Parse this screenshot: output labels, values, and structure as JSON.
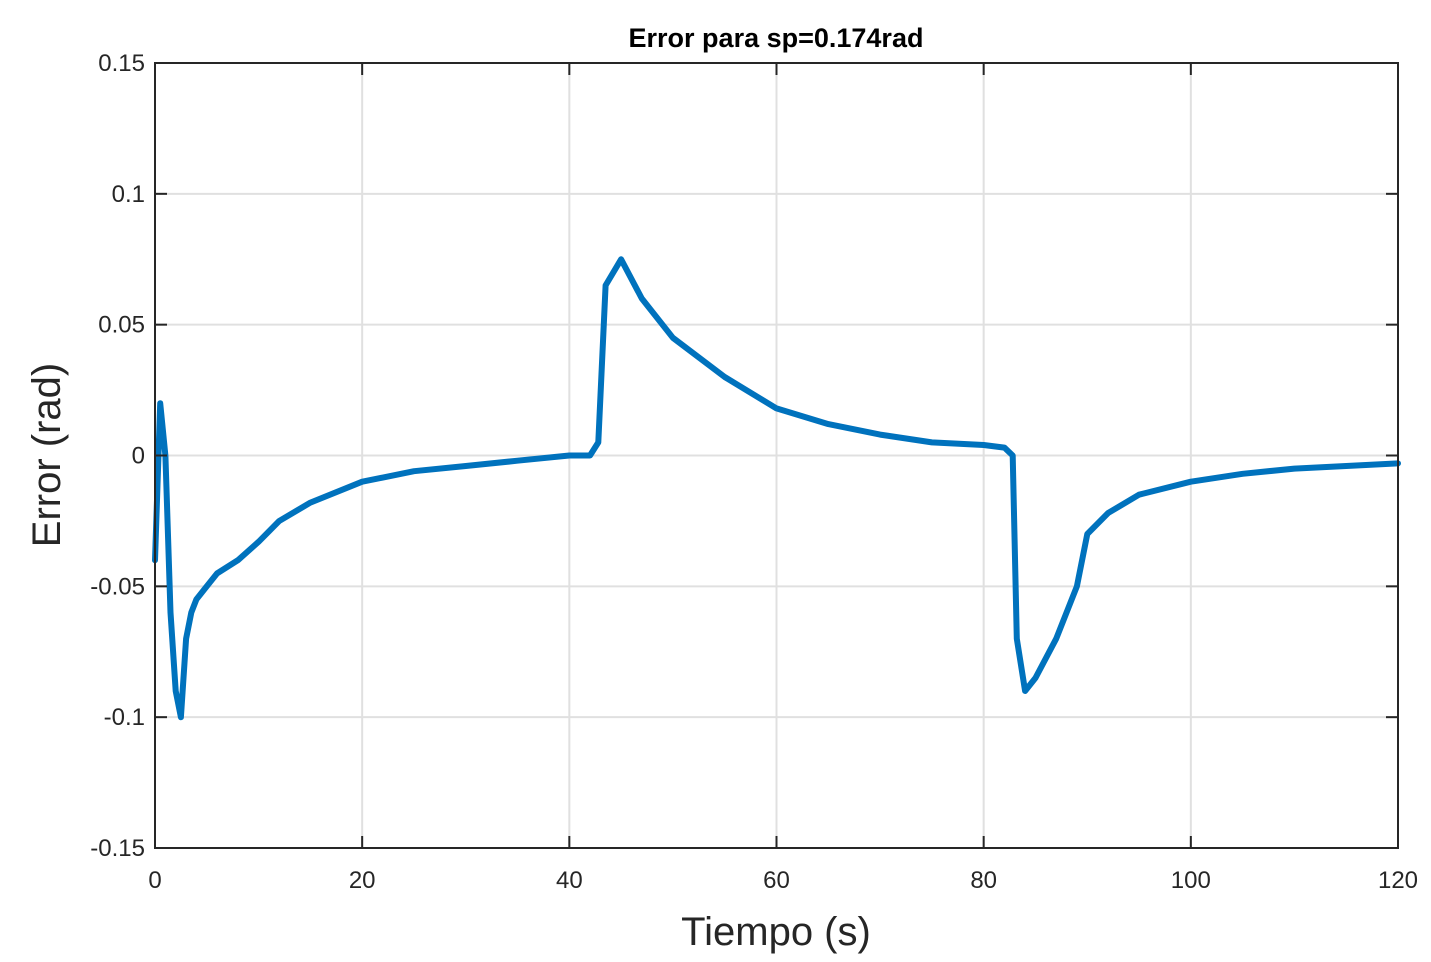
{
  "chart_data": {
    "type": "line",
    "title": "Error para sp=0.174rad",
    "xlabel": "Tiempo (s)",
    "ylabel": "Error (rad)",
    "xlim": [
      0,
      120
    ],
    "ylim": [
      -0.15,
      0.15
    ],
    "xticks": [
      0,
      20,
      40,
      60,
      80,
      100,
      120
    ],
    "xtick_labels": [
      "0",
      "20",
      "40",
      "60",
      "80",
      "100",
      "120"
    ],
    "yticks": [
      0.15,
      0.1,
      0.05,
      0,
      -0.05,
      -0.1,
      -0.15
    ],
    "ytick_labels": [
      "0.15",
      "0.1",
      "0.05",
      "0",
      "-0.05",
      "-0.1",
      "-0.15"
    ],
    "grid": true,
    "series": [
      {
        "color": "#0072BD",
        "x": [
          0,
          0.5,
          1,
          1.5,
          2,
          2.5,
          3,
          3.5,
          4,
          5,
          6,
          8,
          10,
          12,
          15,
          20,
          25,
          30,
          35,
          40,
          42,
          42.8,
          43.5,
          45,
          47,
          50,
          55,
          60,
          65,
          70,
          75,
          80,
          82,
          82.8,
          83.2,
          84,
          85,
          87,
          89,
          90,
          92,
          95,
          100,
          105,
          110,
          115,
          120
        ],
        "y": [
          -0.04,
          0.02,
          0.0,
          -0.06,
          -0.09,
          -0.1,
          -0.07,
          -0.06,
          -0.055,
          -0.05,
          -0.045,
          -0.04,
          -0.033,
          -0.025,
          -0.018,
          -0.01,
          -0.006,
          -0.004,
          -0.002,
          0.0,
          0.0,
          0.005,
          0.065,
          0.075,
          0.06,
          0.045,
          0.03,
          0.018,
          0.012,
          0.008,
          0.005,
          0.004,
          0.003,
          0.0,
          -0.07,
          -0.09,
          -0.085,
          -0.07,
          -0.05,
          -0.03,
          -0.022,
          -0.015,
          -0.01,
          -0.007,
          -0.005,
          -0.004,
          -0.003
        ]
      }
    ]
  }
}
